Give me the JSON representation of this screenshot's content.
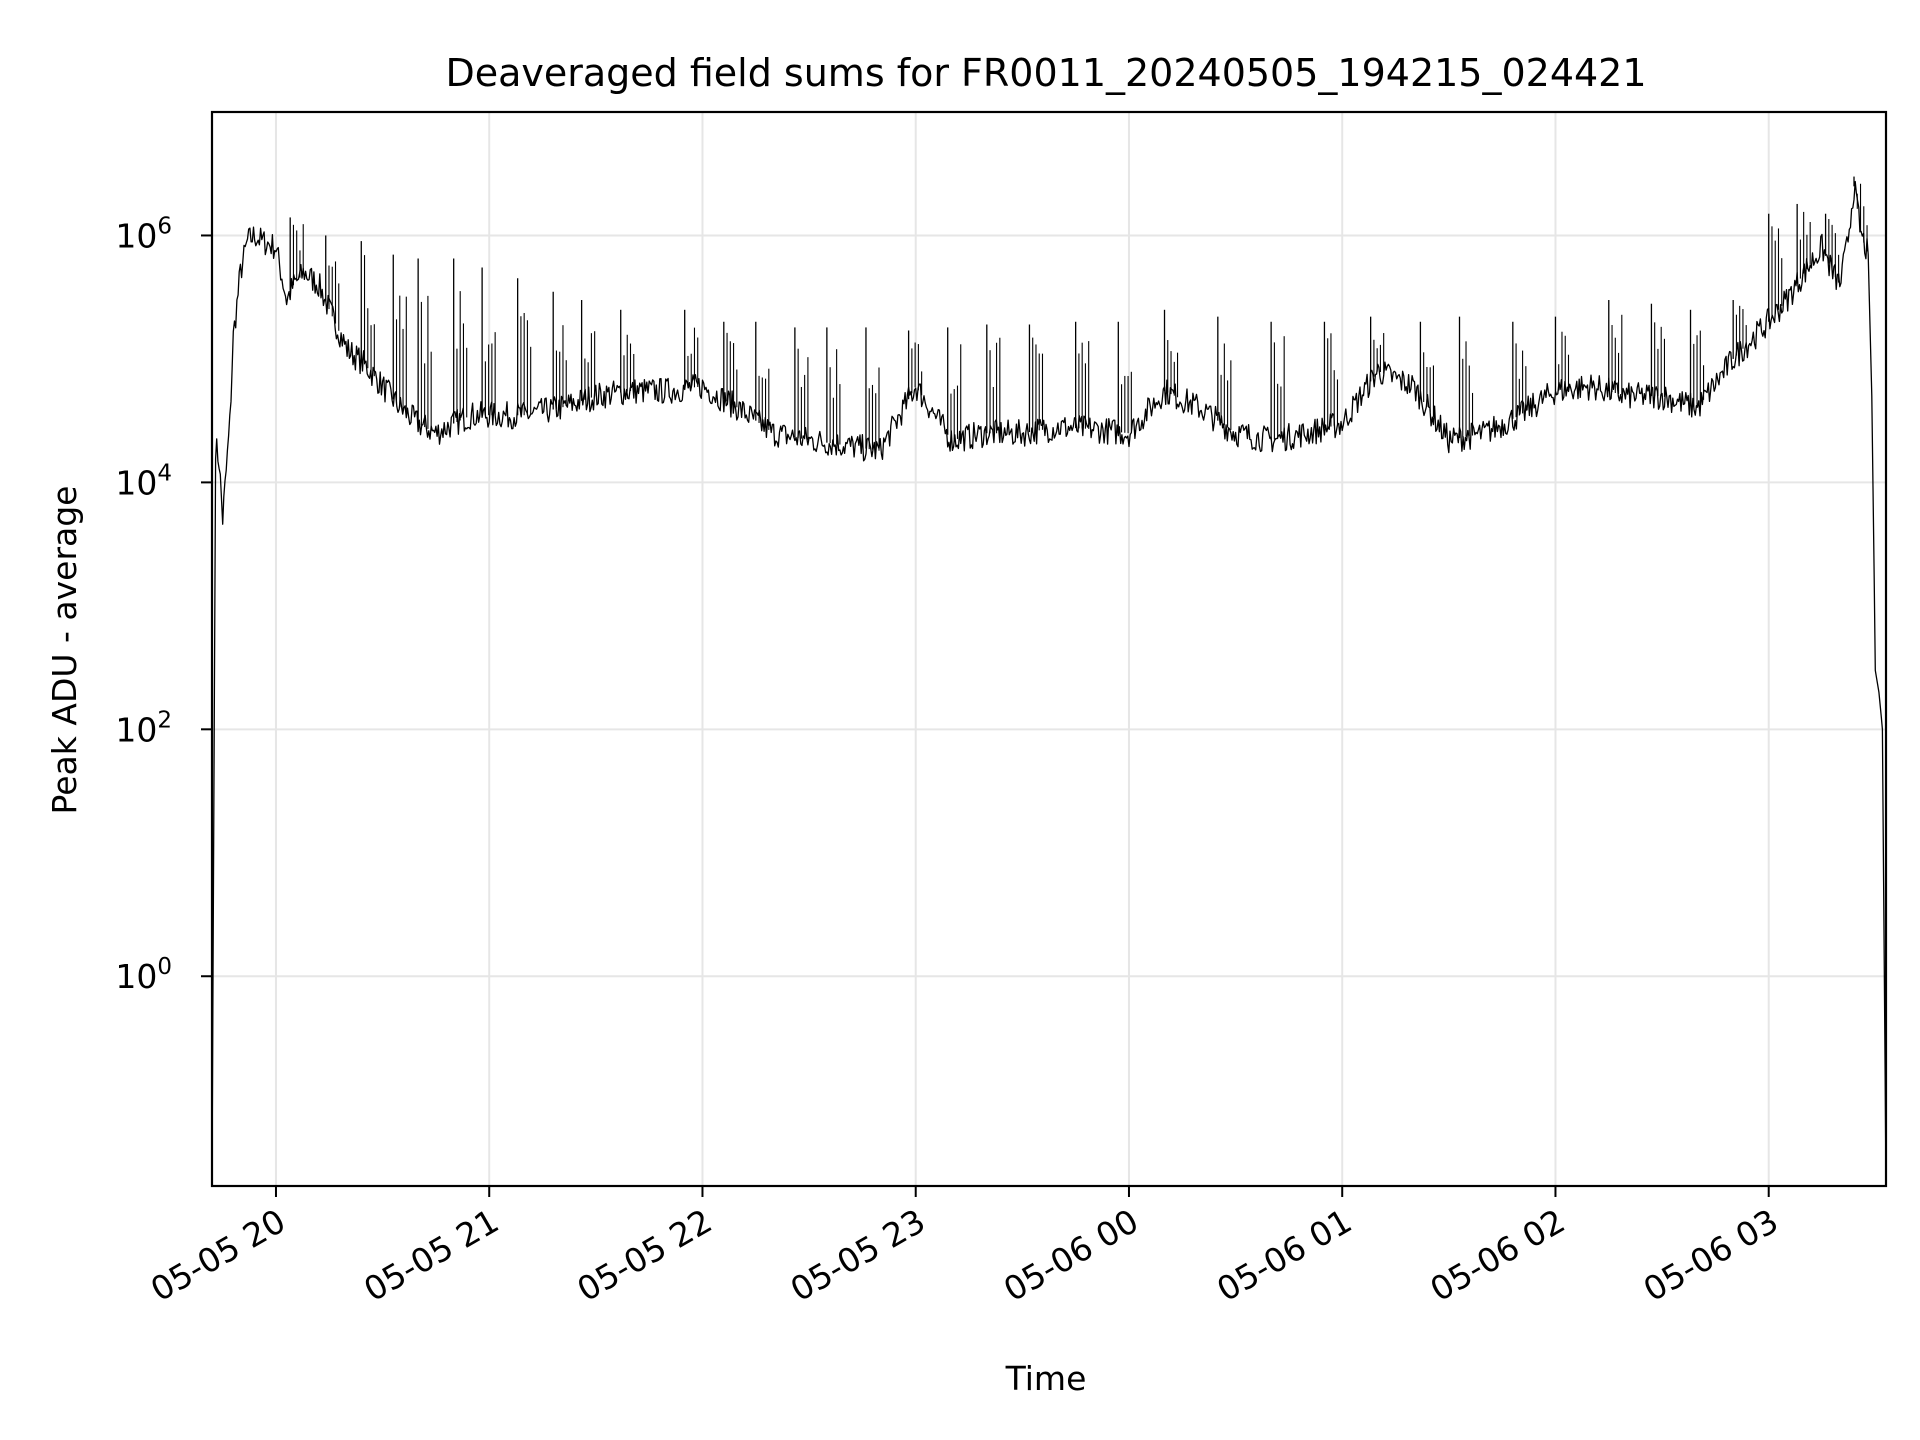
{
  "chart_data": {
    "type": "line",
    "title": "Deaveraged field sums for FR0011_20240505_194215_024421",
    "xlabel": "Time",
    "ylabel": "Peak ADU - average",
    "yscale": "log",
    "grid": true,
    "legend": "none",
    "line_color": "#000000",
    "grid_color": "#e6e6e6",
    "xlim": [
      "2024-05-05 19:42",
      "2024-05-06 03:33"
    ],
    "ylim": [
      0.02,
      10000000
    ],
    "x_ticks": [
      {
        "value": "2024-05-05 20:00",
        "label": "05-05 20"
      },
      {
        "value": "2024-05-05 21:00",
        "label": "05-05 21"
      },
      {
        "value": "2024-05-05 22:00",
        "label": "05-05 22"
      },
      {
        "value": "2024-05-05 23:00",
        "label": "05-05 23"
      },
      {
        "value": "2024-05-06 00:00",
        "label": "05-06 00"
      },
      {
        "value": "2024-05-06 01:00",
        "label": "05-06 01"
      },
      {
        "value": "2024-05-06 02:00",
        "label": "05-06 02"
      },
      {
        "value": "2024-05-06 03:00",
        "label": "05-06 03"
      }
    ],
    "y_ticks": [
      {
        "value": 1,
        "base": "10",
        "exp": "0"
      },
      {
        "value": 100,
        "base": "10",
        "exp": "2"
      },
      {
        "value": 10000,
        "base": "10",
        "exp": "4"
      },
      {
        "value": 1000000,
        "base": "10",
        "exp": "6"
      }
    ],
    "series": [
      {
        "x": [
          "2024-05-05 19:42",
          "2024-05-05 19:43",
          "2024-05-05 19:44",
          "2024-05-05 19:45",
          "2024-05-05 19:47",
          "2024-05-05 19:48",
          "2024-05-05 19:50",
          "2024-05-05 19:52",
          "2024-05-05 19:54",
          "2024-05-05 19:56",
          "2024-05-05 19:58",
          "2024-05-05 20:00",
          "2024-05-05 20:03",
          "2024-05-05 20:05",
          "2024-05-05 20:08",
          "2024-05-05 20:12",
          "2024-05-05 20:15",
          "2024-05-05 20:20",
          "2024-05-05 20:25",
          "2024-05-05 20:30",
          "2024-05-05 20:35",
          "2024-05-05 20:40",
          "2024-05-05 20:45",
          "2024-05-05 20:50",
          "2024-05-05 20:55",
          "2024-05-05 21:00",
          "2024-05-05 21:10",
          "2024-05-05 21:20",
          "2024-05-05 21:30",
          "2024-05-05 21:40",
          "2024-05-05 21:50",
          "2024-05-05 22:00",
          "2024-05-05 22:10",
          "2024-05-05 22:20",
          "2024-05-05 22:30",
          "2024-05-05 22:40",
          "2024-05-05 22:50",
          "2024-05-05 23:00",
          "2024-05-05 23:10",
          "2024-05-05 23:20",
          "2024-05-05 23:30",
          "2024-05-05 23:40",
          "2024-05-05 23:50",
          "2024-05-06 00:00",
          "2024-05-06 00:10",
          "2024-05-06 00:20",
          "2024-05-06 00:30",
          "2024-05-06 00:40",
          "2024-05-06 00:50",
          "2024-05-06 01:00",
          "2024-05-06 01:10",
          "2024-05-06 01:20",
          "2024-05-06 01:30",
          "2024-05-06 01:40",
          "2024-05-06 01:50",
          "2024-05-06 02:00",
          "2024-05-06 02:10",
          "2024-05-06 02:20",
          "2024-05-06 02:30",
          "2024-05-06 02:40",
          "2024-05-06 02:50",
          "2024-05-06 03:00",
          "2024-05-06 03:05",
          "2024-05-06 03:10",
          "2024-05-06 03:15",
          "2024-05-06 03:18",
          "2024-05-06 03:20",
          "2024-05-06 03:22",
          "2024-05-06 03:24",
          "2024-05-06 03:26",
          "2024-05-06 03:28",
          "2024-05-06 03:29",
          "2024-05-06 03:30",
          "2024-05-06 03:31",
          "2024-05-06 03:32",
          "2024-05-06 03:33"
        ],
        "y": [
          0.02,
          20000,
          15000,
          5000,
          30000,
          150000,
          500000,
          900000,
          1000000,
          900000,
          850000,
          800000,
          300000,
          400000,
          500000,
          400000,
          250000,
          120000,
          90000,
          60000,
          40000,
          30000,
          25000,
          30000,
          35000,
          35000,
          35000,
          40000,
          50000,
          55000,
          55000,
          60000,
          40000,
          25000,
          22000,
          20000,
          18000,
          60000,
          22000,
          25000,
          25000,
          28000,
          27000,
          25000,
          55000,
          40000,
          25000,
          22000,
          25000,
          30000,
          80000,
          60000,
          22000,
          25000,
          35000,
          55000,
          60000,
          50000,
          50000,
          40000,
          100000,
          200000,
          300000,
          500000,
          800000,
          500000,
          400000,
          800000,
          2500000,
          1000000,
          700000,
          50000,
          300,
          200,
          100,
          0.02
        ],
        "spike_x": [
          "2024-05-05 20:04",
          "2024-05-05 20:14",
          "2024-05-05 20:24",
          "2024-05-05 20:33",
          "2024-05-05 20:40",
          "2024-05-05 20:50",
          "2024-05-05 20:58",
          "2024-05-05 21:08",
          "2024-05-05 21:18",
          "2024-05-05 21:26",
          "2024-05-05 21:37",
          "2024-05-05 21:55",
          "2024-05-05 22:06",
          "2024-05-05 22:15",
          "2024-05-05 22:26",
          "2024-05-05 22:35",
          "2024-05-05 22:46",
          "2024-05-05 22:58",
          "2024-05-05 23:09",
          "2024-05-05 23:20",
          "2024-05-05 23:32",
          "2024-05-05 23:45",
          "2024-05-05 23:57",
          "2024-05-06 00:10",
          "2024-05-06 00:25",
          "2024-05-06 00:40",
          "2024-05-06 00:55",
          "2024-05-06 01:08",
          "2024-05-06 01:22",
          "2024-05-06 01:33",
          "2024-05-06 01:48",
          "2024-05-06 02:00",
          "2024-05-06 02:15",
          "2024-05-06 02:27",
          "2024-05-06 02:38",
          "2024-05-06 02:50",
          "2024-05-06 03:00",
          "2024-05-06 03:08",
          "2024-05-06 03:16",
          "2024-05-06 03:24"
        ],
        "spike_y": [
          1400000,
          1000000,
          900000,
          700000,
          650000,
          650000,
          550000,
          450000,
          350000,
          300000,
          250000,
          250000,
          200000,
          200000,
          180000,
          180000,
          180000,
          170000,
          180000,
          190000,
          190000,
          200000,
          200000,
          250000,
          220000,
          200000,
          200000,
          220000,
          200000,
          220000,
          200000,
          220000,
          300000,
          280000,
          250000,
          300000,
          1500000,
          1800000,
          1500000,
          3000000
        ]
      }
    ]
  }
}
